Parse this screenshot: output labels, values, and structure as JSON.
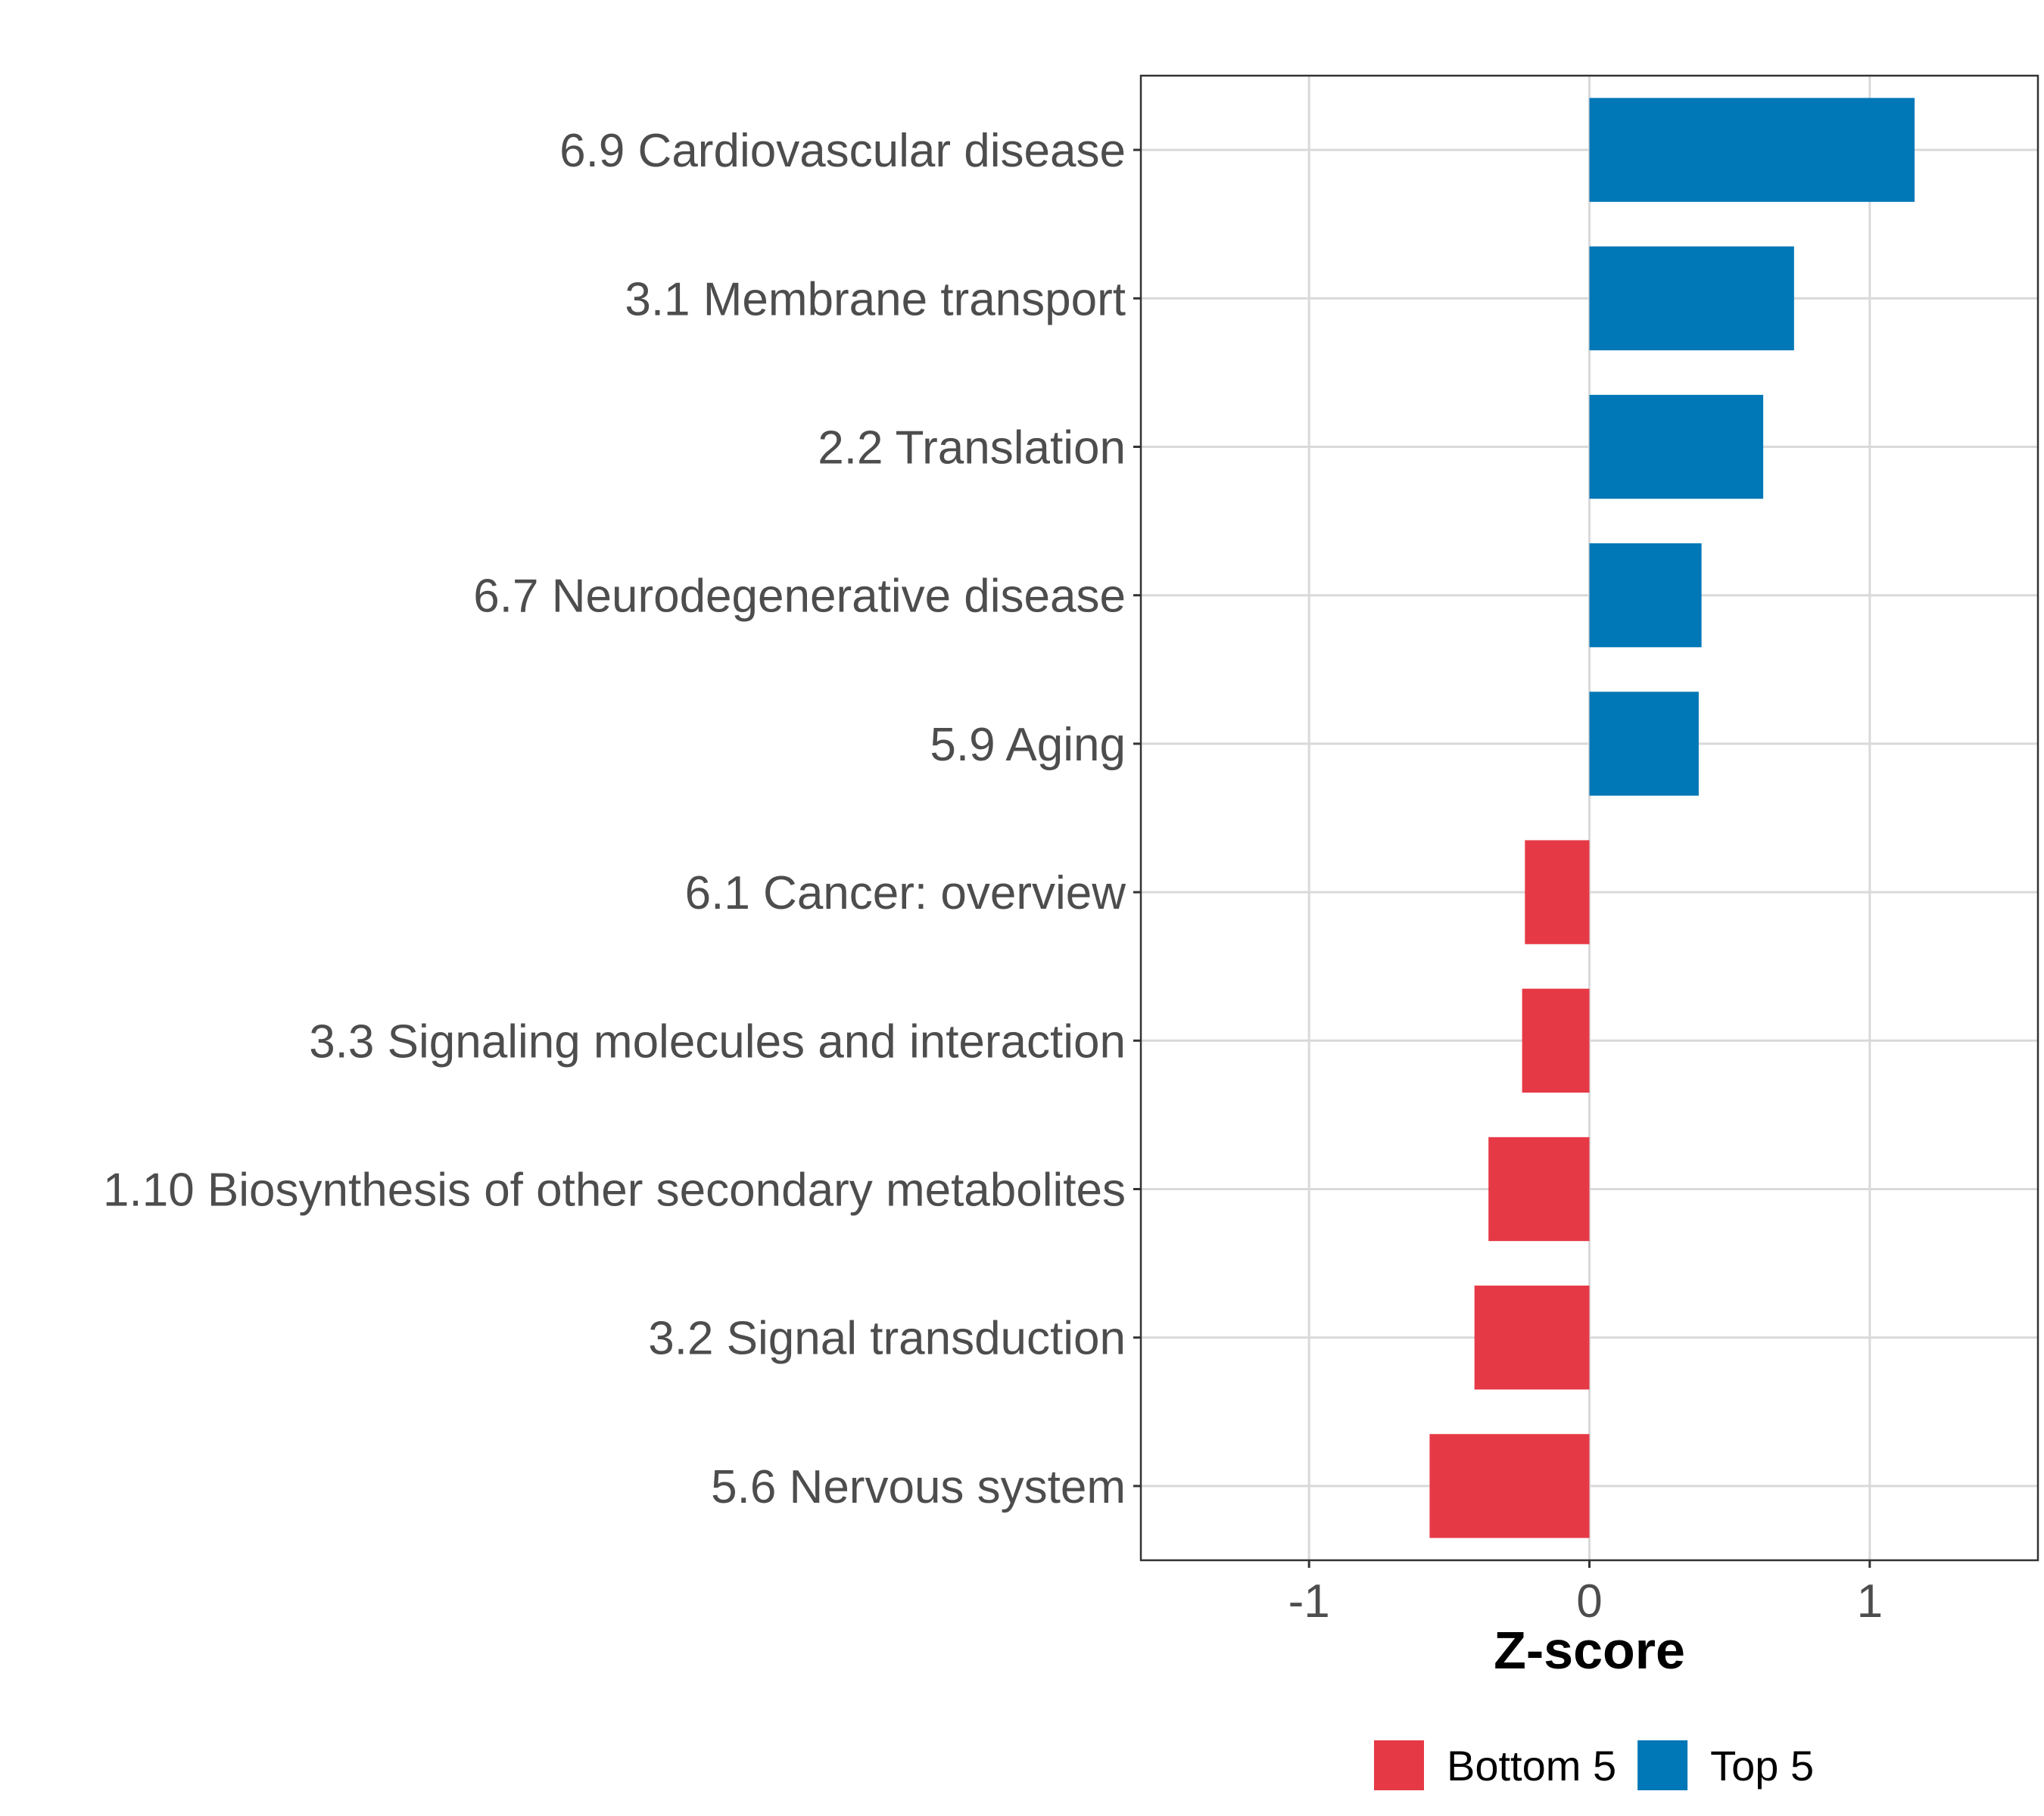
{
  "chart_data": {
    "type": "bar",
    "orientation": "horizontal",
    "categories": [
      "6.9 Cardiovascular disease",
      "3.1 Membrane transport",
      "2.2 Translation",
      "6.7 Neurodegenerative disease",
      "5.9 Aging",
      "6.1 Cancer: overview",
      "3.3 Signaling molecules and interaction",
      "1.10 Biosynthesis of other secondary metabolites",
      "3.2 Signal transduction",
      "5.6 Nervous system"
    ],
    "values": [
      1.16,
      0.73,
      0.62,
      0.4,
      0.39,
      -0.23,
      -0.24,
      -0.36,
      -0.41,
      -0.57
    ],
    "groups": [
      "Top 5",
      "Top 5",
      "Top 5",
      "Top 5",
      "Top 5",
      "Bottom 5",
      "Bottom 5",
      "Bottom 5",
      "Bottom 5",
      "Bottom 5"
    ],
    "xlabel": "Z-score",
    "xlim": [
      -1.6,
      1.6
    ],
    "xticks": [
      -1,
      0,
      1
    ],
    "xtick_labels": [
      "-1",
      "0",
      "1"
    ],
    "grid": true,
    "legend": {
      "position": "bottom",
      "entries": [
        {
          "label": "Bottom 5",
          "color": "#e63946"
        },
        {
          "label": "Top 5",
          "color": "#0077b6"
        }
      ]
    }
  }
}
